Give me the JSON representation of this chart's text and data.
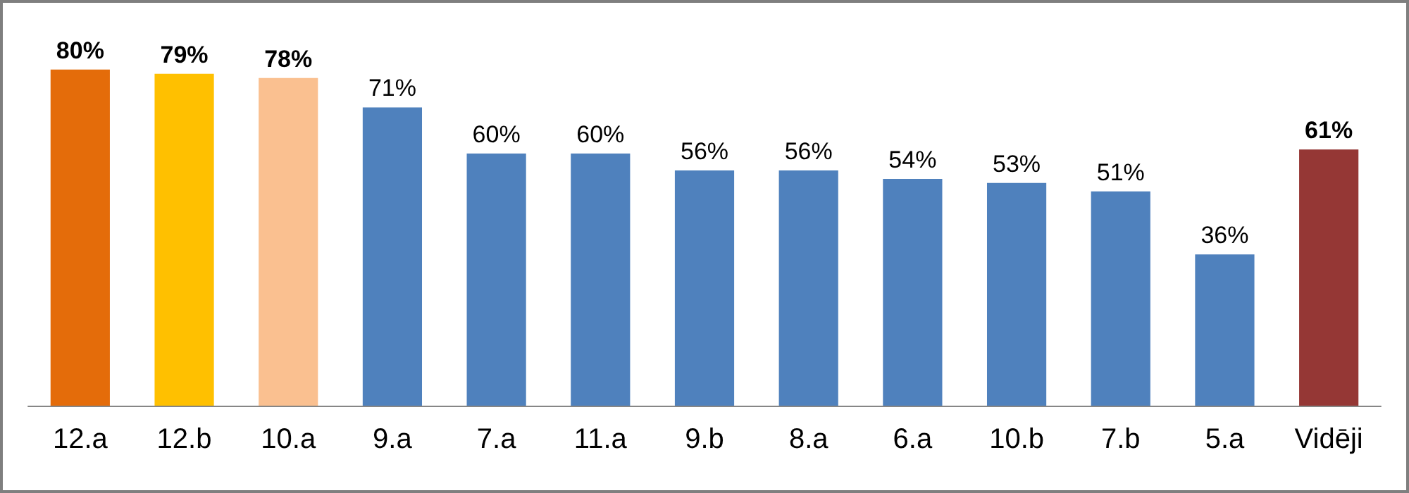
{
  "chart_data": {
    "type": "bar",
    "categories": [
      "12.a",
      "12.b",
      "10.a",
      "9.a",
      "7.a",
      "11.a",
      "9.b",
      "8.a",
      "6.a",
      "10.b",
      "7.b",
      "5.a",
      "Vidēji"
    ],
    "values": [
      80,
      79,
      78,
      71,
      60,
      60,
      56,
      56,
      54,
      53,
      51,
      36,
      61
    ],
    "colors": [
      "#e46c0a",
      "#ffc000",
      "#fac090",
      "#4f81bd",
      "#4f81bd",
      "#4f81bd",
      "#4f81bd",
      "#4f81bd",
      "#4f81bd",
      "#4f81bd",
      "#4f81bd",
      "#4f81bd",
      "#953735"
    ],
    "value_labels": [
      "80%",
      "79%",
      "78%",
      "71%",
      "60%",
      "60%",
      "56%",
      "56%",
      "54%",
      "53%",
      "51%",
      "36%",
      "61%"
    ]
  }
}
